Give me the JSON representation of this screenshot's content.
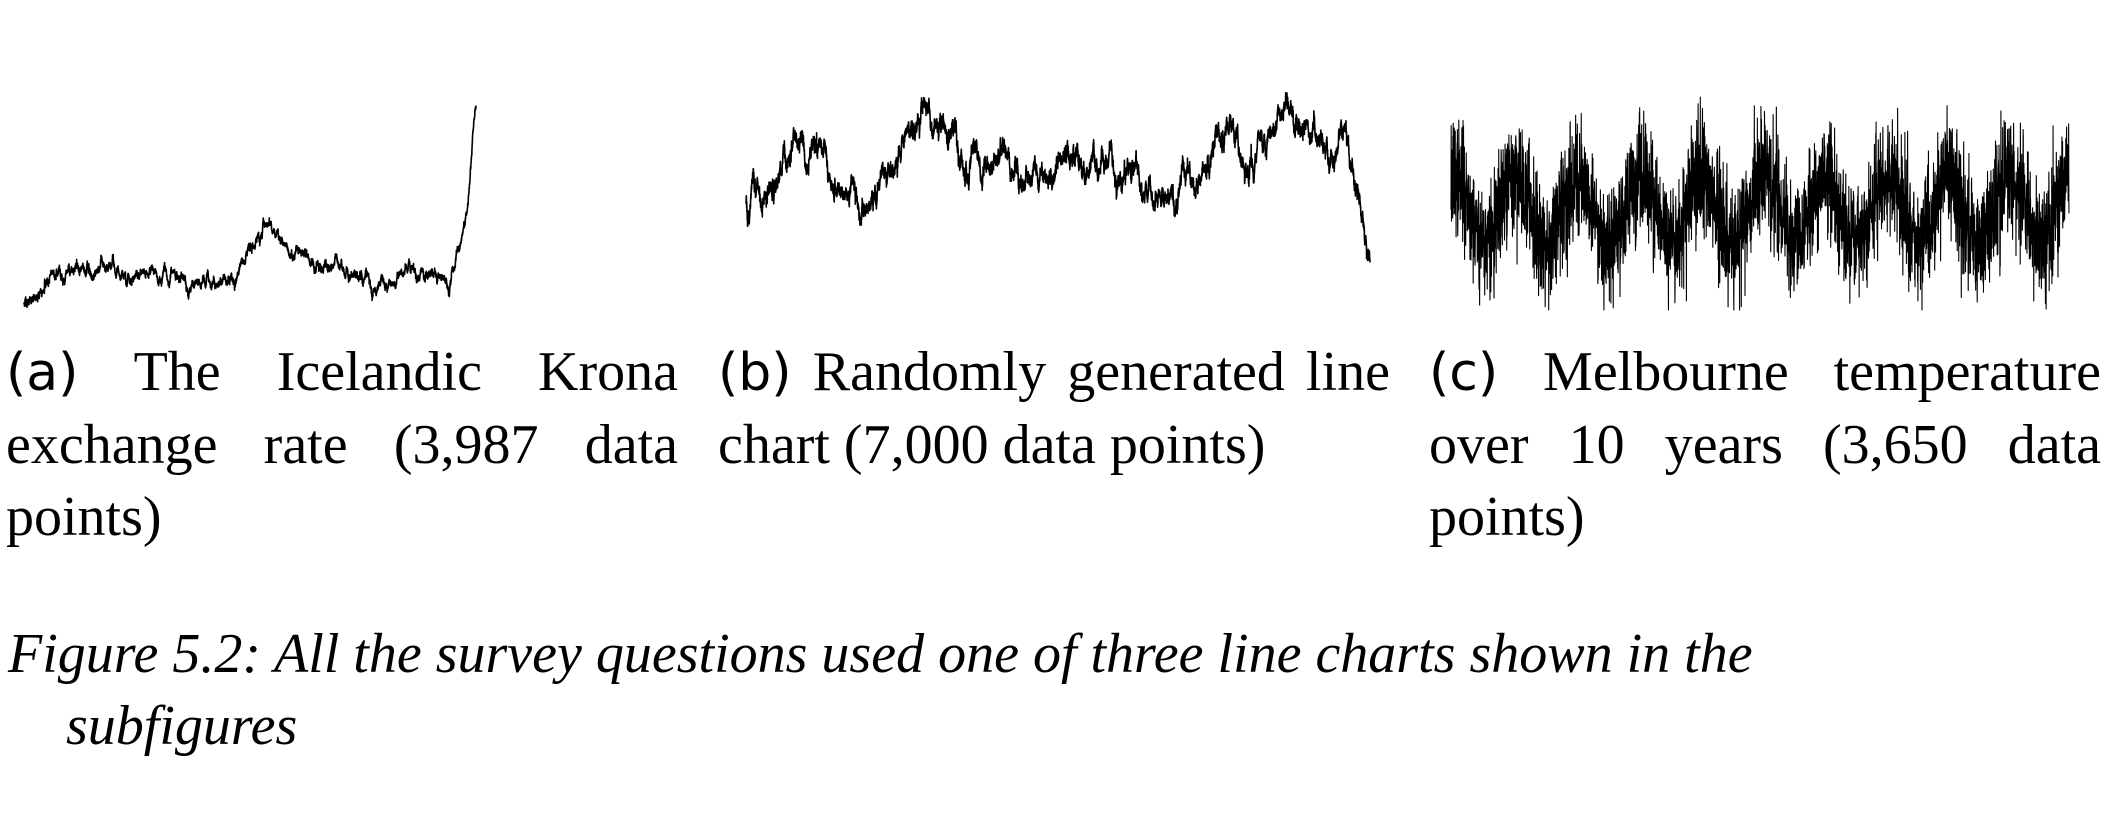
{
  "chart_data": [
    {
      "type": "line",
      "label": "(a)",
      "caption": "The Icelandic Krona exchange rate (3,987 data points)",
      "n_points": 3987,
      "x_range": [
        0,
        3986
      ],
      "ylim": [
        55,
        125
      ],
      "grid": false,
      "axes_shown": false,
      "anchors": [
        [
          0,
          57
        ],
        [
          180,
          61
        ],
        [
          181,
          64.5
        ],
        [
          300,
          66.5
        ],
        [
          800,
          67
        ],
        [
          1300,
          66
        ],
        [
          1700,
          63
        ],
        [
          1850,
          65
        ],
        [
          1950,
          72
        ],
        [
          2150,
          83
        ],
        [
          2200,
          78
        ],
        [
          2500,
          71
        ],
        [
          2750,
          69
        ],
        [
          3000,
          65
        ],
        [
          3200,
          59
        ],
        [
          3350,
          68
        ],
        [
          3550,
          66
        ],
        [
          3750,
          64
        ],
        [
          3800,
          69
        ],
        [
          3870,
          80
        ],
        [
          3930,
          95
        ],
        [
          3960,
          112
        ],
        [
          3986,
          122
        ]
      ],
      "noise": 1.2,
      "seed": 11
    },
    {
      "type": "line",
      "label": "(b)",
      "caption": "Randomly generated line chart (7,000 data points)",
      "n_points": 7000,
      "x_range": [
        0,
        6999
      ],
      "ylim": [
        0,
        100
      ],
      "grid": false,
      "axes_shown": false,
      "anchors": [
        [
          0,
          50
        ],
        [
          200,
          47
        ],
        [
          600,
          72
        ],
        [
          900,
          68
        ],
        [
          1300,
          46
        ],
        [
          1500,
          52
        ],
        [
          1800,
          78
        ],
        [
          2100,
          90
        ],
        [
          2400,
          70
        ],
        [
          2900,
          65
        ],
        [
          3400,
          61
        ],
        [
          3800,
          68
        ],
        [
          4300,
          59
        ],
        [
          4700,
          53
        ],
        [
          5100,
          62
        ],
        [
          5400,
          80
        ],
        [
          5700,
          62
        ],
        [
          6000,
          86
        ],
        [
          6200,
          88
        ],
        [
          6500,
          72
        ],
        [
          6750,
          66
        ],
        [
          6850,
          55
        ],
        [
          6999,
          18
        ]
      ],
      "noise": 3.2,
      "seed": 23
    },
    {
      "type": "line",
      "label": "(c)",
      "caption": "Melbourne temperature over 10 years (3,650 data points)",
      "n_points": 3650,
      "x_range": [
        0,
        3649
      ],
      "ylim": [
        -2,
        28
      ],
      "grid": false,
      "axes_shown": false,
      "seasonal_mean": 11.5,
      "seasonal_amplitude": 4.5,
      "period_days": 365,
      "noise": 3.8,
      "seed": 37
    }
  ],
  "subfigures": [
    {
      "label": "(a)",
      "caption_text": "The Icelandic Krona exchange rate (3,987 data points)"
    },
    {
      "label": "(b)",
      "caption_text": "Randomly generated line chart (7,000 data points)"
    },
    {
      "label": "(c)",
      "caption_text": "Melbourne temperature over 10 years (3,650 data points)"
    }
  ],
  "figure": {
    "label": "Figure 5.2:",
    "caption_line1": "All the survey questions used one of three line charts shown in the",
    "caption_line2": "subfigures"
  },
  "colors": {
    "line": "#000000",
    "background": "#ffffff"
  }
}
